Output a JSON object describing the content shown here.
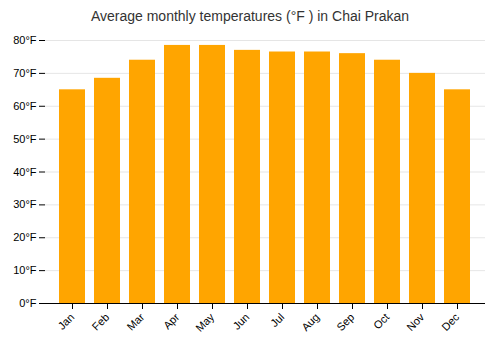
{
  "chart_data": {
    "type": "bar",
    "title": "Average monthly temperatures (°F ) in Chai Prakan",
    "categories": [
      "Jan",
      "Feb",
      "Mar",
      "Apr",
      "May",
      "Jun",
      "Jul",
      "Aug",
      "Sep",
      "Oct",
      "Nov",
      "Dec"
    ],
    "values": [
      65,
      68.5,
      74,
      78.5,
      78.5,
      77,
      76.5,
      76.5,
      76,
      74,
      70,
      65
    ],
    "color": "#FFA500",
    "ylim": [
      0,
      80
    ],
    "yticks": [
      {
        "value": 0,
        "label": "0°F"
      },
      {
        "value": 10,
        "label": "10°F"
      },
      {
        "value": 20,
        "label": "20°F"
      },
      {
        "value": 30,
        "label": "30°F"
      },
      {
        "value": 40,
        "label": "40°F"
      },
      {
        "value": 50,
        "label": "50°F"
      },
      {
        "value": 60,
        "label": "60°F"
      },
      {
        "value": 70,
        "label": "70°F"
      },
      {
        "value": 80,
        "label": "80°F"
      }
    ],
    "grid": true
  }
}
